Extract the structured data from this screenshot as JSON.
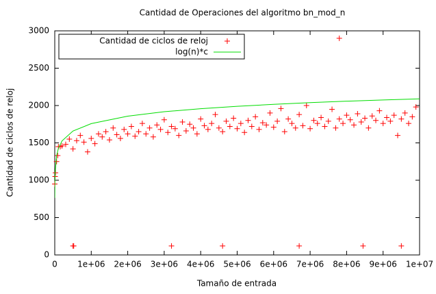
{
  "chart_data": {
    "type": "scatter-line",
    "title": "Cantidad de Operaciones del algoritmo bn_mod_n",
    "x_label": "Tamaño de entrada",
    "y_label": "Cantidad de ciclos de reloj",
    "xlim": [
      0,
      10000000
    ],
    "ylim": [
      0,
      3000
    ],
    "xticks": [
      0,
      {
        "value": 1000000,
        "label": "1e+06"
      },
      {
        "value": 2000000,
        "label": "2e+06"
      },
      {
        "value": 3000000,
        "label": "3e+06"
      },
      {
        "value": 4000000,
        "label": "4e+06"
      },
      {
        "value": 5000000,
        "label": "5e+06"
      },
      {
        "value": 6000000,
        "label": "6e+06"
      },
      {
        "value": 7000000,
        "label": "7e+06"
      },
      {
        "value": 8000000,
        "label": "8e+06"
      },
      {
        "value": 9000000,
        "label": "9e+06"
      },
      {
        "value": 10000000,
        "label": "1e+07"
      }
    ],
    "yticks": [
      0,
      500,
      1000,
      1500,
      2000,
      2500,
      3000
    ],
    "grid": false,
    "legend": "top-left",
    "series": [
      {
        "name": "Cantidad de ciclos de reloj",
        "kind": "points",
        "color": "#ff0000",
        "x": [
          0,
          10000,
          20000,
          50000,
          80000,
          100000,
          150000,
          200000,
          300000,
          400000,
          500000,
          600000,
          700000,
          800000,
          900000,
          1000000,
          1100000,
          1200000,
          1300000,
          1400000,
          1500000,
          1600000,
          1700000,
          1800000,
          1900000,
          2000000,
          2100000,
          2200000,
          2300000,
          2400000,
          2500000,
          2600000,
          2700000,
          2800000,
          2900000,
          3000000,
          3100000,
          3200000,
          3300000,
          3400000,
          3500000,
          3600000,
          3700000,
          3800000,
          3900000,
          4000000,
          4100000,
          4200000,
          4300000,
          4400000,
          4500000,
          4600000,
          4700000,
          4800000,
          4900000,
          5000000,
          5100000,
          5200000,
          5300000,
          5400000,
          5500000,
          5600000,
          5700000,
          5800000,
          5900000,
          6000000,
          6100000,
          6200000,
          6300000,
          6400000,
          6500000,
          6600000,
          6700000,
          6800000,
          6900000,
          7000000,
          7100000,
          7200000,
          7300000,
          7400000,
          7500000,
          7600000,
          7700000,
          7800000,
          7900000,
          8000000,
          8100000,
          8200000,
          8300000,
          8400000,
          8500000,
          8600000,
          8700000,
          8800000,
          8900000,
          9000000,
          9100000,
          9200000,
          9300000,
          9400000,
          9500000,
          9600000,
          9700000,
          9800000,
          9900000,
          500000,
          520000,
          3200000,
          4600000,
          6700000,
          8450000,
          9500000,
          7800000
        ],
        "values": [
          950,
          1050,
          1100,
          1250,
          1330,
          1450,
          1450,
          1460,
          1480,
          1550,
          1420,
          1530,
          1600,
          1510,
          1380,
          1560,
          1490,
          1620,
          1580,
          1650,
          1540,
          1700,
          1610,
          1560,
          1680,
          1620,
          1720,
          1590,
          1650,
          1760,
          1620,
          1700,
          1580,
          1740,
          1680,
          1810,
          1640,
          1720,
          1690,
          1600,
          1780,
          1660,
          1750,
          1700,
          1620,
          1820,
          1730,
          1680,
          1760,
          1880,
          1700,
          1650,
          1790,
          1720,
          1830,
          1690,
          1760,
          1640,
          1800,
          1720,
          1850,
          1680,
          1770,
          1740,
          1900,
          1710,
          1790,
          1960,
          1650,
          1820,
          1760,
          1700,
          1880,
          1730,
          2000,
          1690,
          1800,
          1760,
          1840,
          1720,
          1790,
          1950,
          1700,
          1820,
          1760,
          1870,
          1810,
          1740,
          1890,
          1780,
          1830,
          1700,
          1860,
          1800,
          1930,
          1760,
          1840,
          1790,
          1870,
          1600,
          1820,
          1900,
          1760,
          1850,
          1980,
          120,
          120,
          120,
          120,
          120,
          120,
          120,
          2900
        ]
      },
      {
        "name": "log(n)*c",
        "kind": "line",
        "color": "#00dd00",
        "x": [
          1000,
          5000,
          10000,
          50000,
          100000,
          200000,
          500000,
          1000000,
          2000000,
          3000000,
          4000000,
          5000000,
          6000000,
          7000000,
          8000000,
          9000000,
          10000000
        ],
        "values": [
          764,
          995,
          1095,
          1327,
          1427,
          1527,
          1659,
          1758,
          1858,
          1917,
          1958,
          1990,
          2016,
          2039,
          2058,
          2075,
          2090
        ]
      }
    ]
  }
}
